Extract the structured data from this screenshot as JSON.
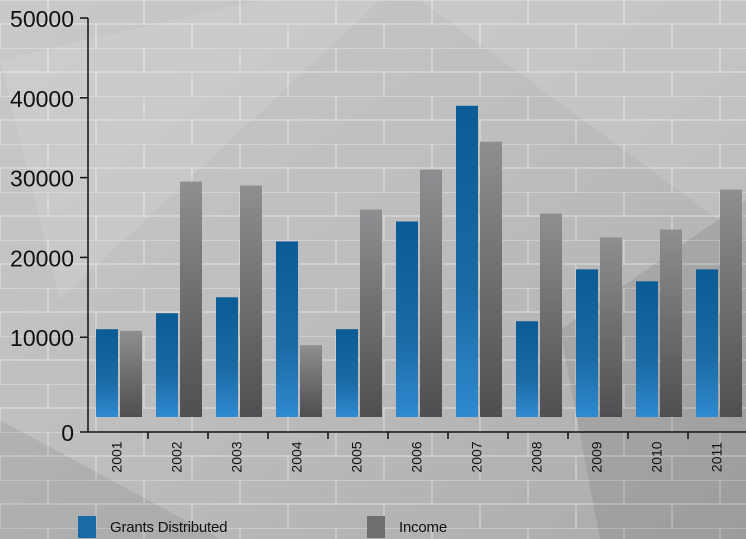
{
  "chart_data": {
    "type": "bar",
    "categories": [
      "2001",
      "2002",
      "2003",
      "2004",
      "2005",
      "2006",
      "2007",
      "2008",
      "2009",
      "2010",
      "2011"
    ],
    "series": [
      {
        "name": "Grants Distributed",
        "values": [
          11000,
          13000,
          15000,
          22000,
          11000,
          24500,
          39000,
          12000,
          18500,
          17000,
          18500
        ],
        "color": "#1a6aa6"
      },
      {
        "name": "Income",
        "values": [
          10800,
          29500,
          29000,
          9000,
          26000,
          31000,
          34500,
          25500,
          22500,
          23500,
          28500
        ],
        "color": "#6e6e70"
      }
    ],
    "ylim": [
      0,
      50000
    ],
    "yticks": [
      "0",
      "10000",
      "20000",
      "30000",
      "40000",
      "50000"
    ],
    "title": "",
    "xlabel": "",
    "ylabel": "",
    "legend_position": "bottom",
    "grid": false
  },
  "colors": {
    "background": "#b8b8b8",
    "axis": "#111111",
    "grants": "#1a6aa6",
    "income": "#6e6e70"
  }
}
